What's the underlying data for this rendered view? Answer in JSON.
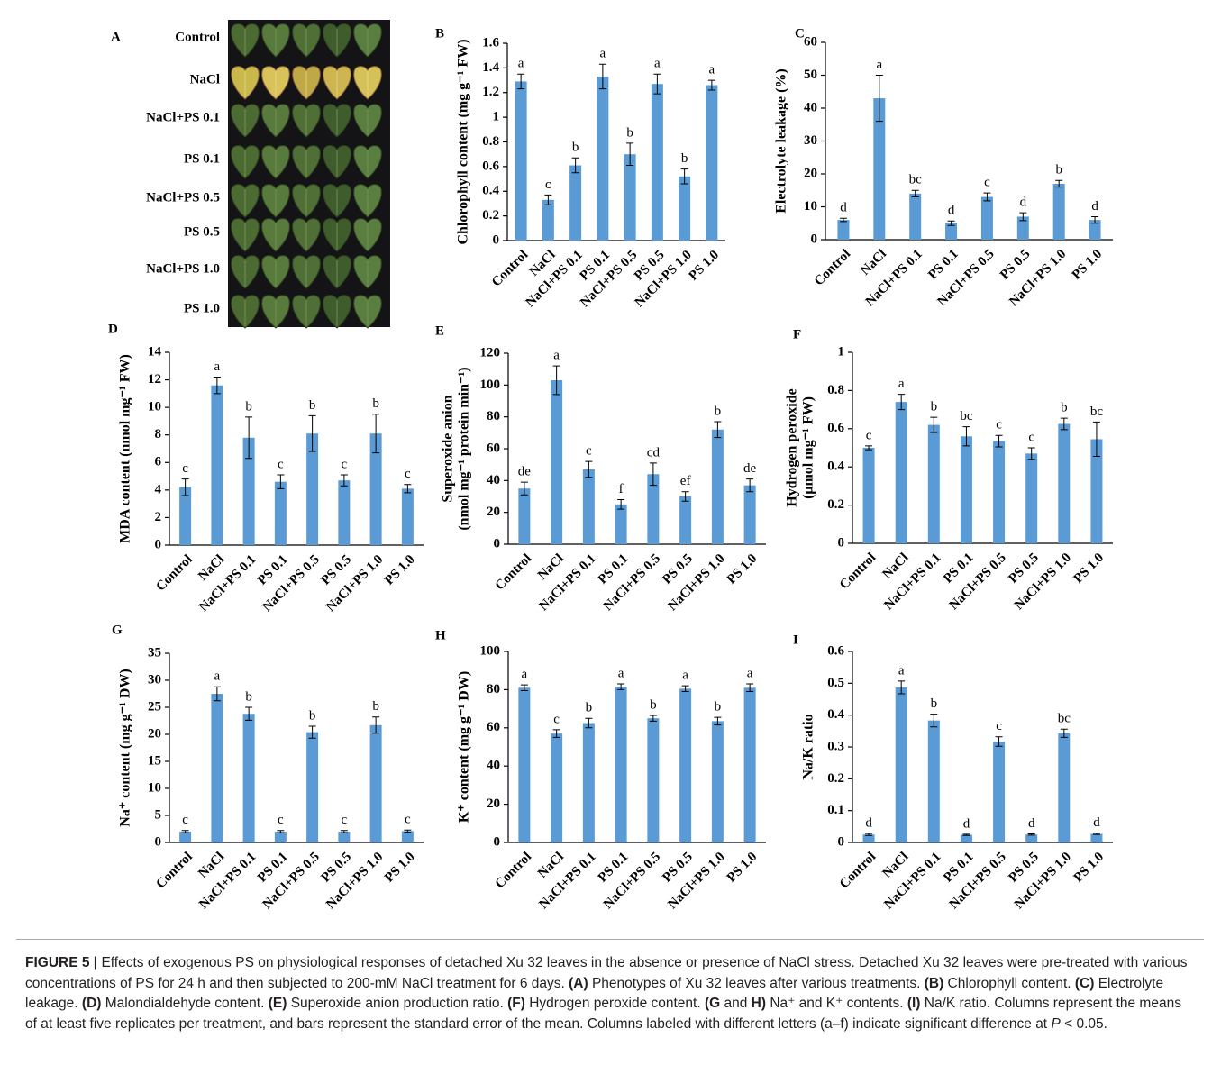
{
  "panel_a": {
    "label": "A",
    "rows": [
      "Control",
      "NaCl",
      "NaCl+PS 0.1",
      "PS 0.1",
      "NaCl+PS 0.5",
      "PS 0.5",
      "NaCl+PS 1.0",
      "PS 1.0"
    ]
  },
  "chart_data": [
    {
      "type": "bar",
      "panel": "B",
      "ylabel": [
        "Chlorophyll content (mg g⁻¹ FW)"
      ],
      "color": "#5b9bd5",
      "categories": [
        "Control",
        "NaCl",
        "NaCl+PS 0.1",
        "PS 0.1",
        "NaCl+PS 0.5",
        "PS 0.5",
        "NaCl+PS 1.0",
        "PS 1.0"
      ],
      "values": [
        1.29,
        0.33,
        0.61,
        1.33,
        0.7,
        1.27,
        0.52,
        1.26
      ],
      "errors": [
        0.06,
        0.04,
        0.06,
        0.1,
        0.09,
        0.08,
        0.06,
        0.04
      ],
      "letters": [
        "a",
        "c",
        "b",
        "a",
        "b",
        "a",
        "b",
        "a"
      ],
      "ylim": [
        0,
        1.6
      ],
      "yticks": [
        0,
        0.2,
        0.4,
        0.6,
        0.8,
        1,
        1.2,
        1.4,
        1.6
      ]
    },
    {
      "type": "bar",
      "panel": "C",
      "ylabel": [
        "Electrolyte leakage (%)"
      ],
      "color": "#5b9bd5",
      "categories": [
        "Control",
        "NaCl",
        "NaCl+PS 0.1",
        "PS 0.1",
        "NaCl+PS 0.5",
        "PS 0.5",
        "NaCl+PS 1.0",
        "PS 1.0"
      ],
      "values": [
        6,
        43,
        14,
        5,
        13,
        7,
        17,
        6
      ],
      "errors": [
        0.5,
        7,
        1,
        0.7,
        1.2,
        1.2,
        1,
        1
      ],
      "letters": [
        "d",
        "a",
        "bc",
        "d",
        "c",
        "d",
        "b",
        "d"
      ],
      "ylim": [
        0,
        60
      ],
      "yticks": [
        0,
        10,
        20,
        30,
        40,
        50,
        60
      ]
    },
    {
      "type": "bar",
      "panel": "D",
      "ylabel": [
        "MDA content (nmol mg⁻¹ FW)"
      ],
      "color": "#5b9bd5",
      "categories": [
        "Control",
        "NaCl",
        "NaCl+PS 0.1",
        "PS 0.1",
        "NaCl+PS 0.5",
        "PS 0.5",
        "NaCl+PS 1.0",
        "PS 1.0"
      ],
      "values": [
        4.2,
        11.6,
        7.8,
        4.6,
        8.1,
        4.7,
        8.1,
        4.1
      ],
      "errors": [
        0.6,
        0.6,
        1.5,
        0.5,
        1.3,
        0.4,
        1.4,
        0.3
      ],
      "letters": [
        "c",
        "a",
        "b",
        "c",
        "b",
        "c",
        "b",
        "c"
      ],
      "ylim": [
        0,
        14
      ],
      "yticks": [
        0,
        2,
        4,
        6,
        8,
        10,
        12,
        14
      ]
    },
    {
      "type": "bar",
      "panel": "E",
      "ylabel": [
        "Superoxide anion",
        "(nmol mg⁻¹ protein min⁻¹)"
      ],
      "color": "#5b9bd5",
      "categories": [
        "Control",
        "NaCl",
        "NaCl+PS 0.1",
        "PS 0.1",
        "NaCl+PS 0.5",
        "PS 0.5",
        "NaCl+PS 1.0",
        "PS 1.0"
      ],
      "values": [
        35,
        103,
        47,
        25,
        44,
        30,
        72,
        37
      ],
      "errors": [
        4,
        9,
        5,
        3,
        7,
        3,
        5,
        4
      ],
      "letters": [
        "de",
        "a",
        "c",
        "f",
        "cd",
        "ef",
        "b",
        "de"
      ],
      "ylim": [
        0,
        120
      ],
      "yticks": [
        0,
        20,
        40,
        60,
        80,
        100,
        120
      ]
    },
    {
      "type": "bar",
      "panel": "F",
      "ylabel": [
        "Hydrogen peroxide",
        "(μmol mg⁻¹ FW)"
      ],
      "color": "#5b9bd5",
      "categories": [
        "Control",
        "NaCl",
        "NaCl+PS 0.1",
        "PS 0.1",
        "NaCl+PS 0.5",
        "PS 0.5",
        "NaCl+PS 1.0",
        "PS 1.0"
      ],
      "values": [
        0.5,
        0.74,
        0.62,
        0.56,
        0.535,
        0.47,
        0.625,
        0.545
      ],
      "errors": [
        0.01,
        0.04,
        0.04,
        0.05,
        0.03,
        0.03,
        0.03,
        0.09
      ],
      "letters": [
        "c",
        "a",
        "b",
        "bc",
        "c",
        "c",
        "b",
        "bc"
      ],
      "ylim": [
        0,
        1
      ],
      "yticks": [
        0,
        0.2,
        0.4,
        0.6,
        0.8,
        1
      ]
    },
    {
      "type": "bar",
      "panel": "G",
      "ylabel": [
        "Na⁺ content (mg g⁻¹ DW)"
      ],
      "color": "#5b9bd5",
      "categories": [
        "Control",
        "NaCl",
        "NaCl+PS 0.1",
        "PS 0.1",
        "NaCl+PS 0.5",
        "PS 0.5",
        "NaCl+PS 1.0",
        "PS 1.0"
      ],
      "values": [
        2,
        27.5,
        23.8,
        2,
        20.4,
        2,
        21.7,
        2.1
      ],
      "errors": [
        0.2,
        1.3,
        1.2,
        0.2,
        1.1,
        0.2,
        1.5,
        0.2
      ],
      "letters": [
        "c",
        "a",
        "b",
        "c",
        "b",
        "c",
        "b",
        "c"
      ],
      "ylim": [
        0,
        35
      ],
      "yticks": [
        0,
        5,
        10,
        15,
        20,
        25,
        30,
        35
      ]
    },
    {
      "type": "bar",
      "panel": "H",
      "ylabel": [
        "K⁺ content  (mg g⁻¹ DW)"
      ],
      "color": "#5b9bd5",
      "categories": [
        "Control",
        "NaCl",
        "NaCl+PS 0.1",
        "PS 0.1",
        "NaCl+PS 0.5",
        "PS 0.5",
        "NaCl+PS 1.0",
        "PS 1.0"
      ],
      "values": [
        81,
        57,
        62.5,
        81.5,
        65,
        80.5,
        63.5,
        81
      ],
      "errors": [
        1.5,
        2,
        2.5,
        1.5,
        1.5,
        1.5,
        2,
        2
      ],
      "letters": [
        "a",
        "c",
        "b",
        "a",
        "b",
        "a",
        "b",
        "a"
      ],
      "ylim": [
        0,
        100
      ],
      "yticks": [
        0,
        20,
        40,
        60,
        80,
        100
      ]
    },
    {
      "type": "bar",
      "panel": "I",
      "ylabel": [
        "Na/K ratio"
      ],
      "color": "#5b9bd5",
      "categories": [
        "Control",
        "NaCl",
        "NaCl+PS 0.1",
        "PS 0.1",
        "NaCl+PS 0.5",
        "PS 0.5",
        "NaCl+PS 1.0",
        "PS 1.0"
      ],
      "values": [
        0.025,
        0.487,
        0.383,
        0.024,
        0.317,
        0.025,
        0.343,
        0.027
      ],
      "errors": [
        0.003,
        0.02,
        0.02,
        0.002,
        0.015,
        0.002,
        0.013,
        0.002
      ],
      "letters": [
        "d",
        "a",
        "b",
        "d",
        "c",
        "d",
        "bc",
        "d"
      ],
      "ylim": [
        0,
        0.6
      ],
      "yticks": [
        0,
        0.1,
        0.2,
        0.3,
        0.4,
        0.5,
        0.6
      ]
    }
  ],
  "caption": [
    {
      "text": "FIGURE 5 |",
      "style": "bold"
    },
    {
      "text": " Effects of exogenous PS on physiological responses of detached Xu 32 leaves in the absence or presence of NaCl stress. Detached Xu 32 leaves were pre-treated with various concentrations of PS for 24 h and then subjected to 200-mM NaCl treatment for 6 days. "
    },
    {
      "text": "(A)",
      "style": "bold"
    },
    {
      "text": " Phenotypes of Xu 32 leaves after various treatments. "
    },
    {
      "text": "(B)",
      "style": "bold"
    },
    {
      "text": " Chlorophyll content. "
    },
    {
      "text": "(C)",
      "style": "bold"
    },
    {
      "text": " Electrolyte leakage. "
    },
    {
      "text": "(D)",
      "style": "bold"
    },
    {
      "text": " Malondialdehyde content. "
    },
    {
      "text": "(E)",
      "style": "bold"
    },
    {
      "text": " Superoxide anion production ratio. "
    },
    {
      "text": "(F)",
      "style": "bold"
    },
    {
      "text": " Hydrogen peroxide content. "
    },
    {
      "text": "(G",
      "style": "bold"
    },
    {
      "text": " and "
    },
    {
      "text": "H)",
      "style": "bold"
    },
    {
      "text": " Na⁺ and K⁺ contents. "
    },
    {
      "text": "(I)",
      "style": "bold"
    },
    {
      "text": " Na/K ratio. Columns represent the means of at least five replicates per treatment, and bars represent the standard error of the mean. Columns labeled with different letters (a–f) indicate significant difference at "
    },
    {
      "text": "P",
      "style": "italic"
    },
    {
      "text": " < 0.05."
    }
  ]
}
